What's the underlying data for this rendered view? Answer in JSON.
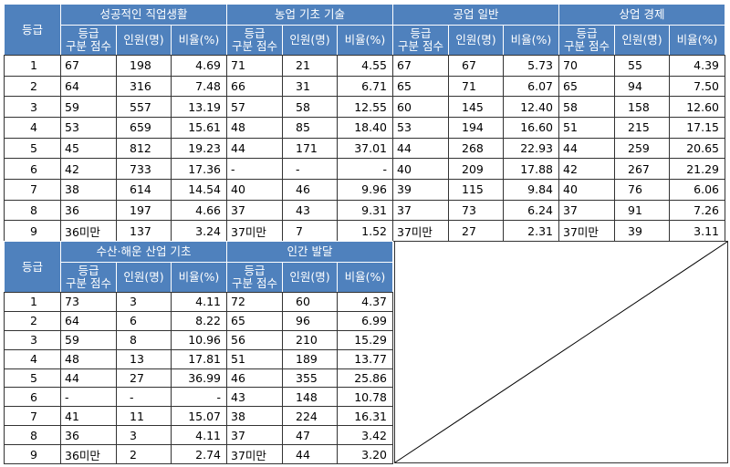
{
  "blocks": [
    {
      "grade_header": "등급",
      "grades": [
        "1",
        "2",
        "3",
        "4",
        "5",
        "6",
        "7",
        "8",
        "9"
      ],
      "subjects": [
        {
          "name": "성공적인 직업생활",
          "columns": [
            [
              "등급",
              "구분 점수"
            ],
            "인원(명)",
            "비율(%)"
          ],
          "rows": [
            [
              "67",
              "198",
              "4.69"
            ],
            [
              "64",
              "316",
              "7.48"
            ],
            [
              "59",
              "557",
              "13.19"
            ],
            [
              "53",
              "659",
              "15.61"
            ],
            [
              "45",
              "812",
              "19.23"
            ],
            [
              "42",
              "733",
              "17.36"
            ],
            [
              "38",
              "614",
              "14.54"
            ],
            [
              "36",
              "197",
              "4.66"
            ],
            [
              "36미만",
              "137",
              "3.24"
            ]
          ]
        },
        {
          "name": "농업 기초 기술",
          "columns": [
            [
              "등급",
              "구분 점수"
            ],
            "인원(명)",
            "비율(%)"
          ],
          "rows": [
            [
              "71",
              "21",
              "4.55"
            ],
            [
              "66",
              "31",
              "6.71"
            ],
            [
              "57",
              "58",
              "12.55"
            ],
            [
              "48",
              "85",
              "18.40"
            ],
            [
              "44",
              "171",
              "37.01"
            ],
            [
              "-",
              "-",
              "-"
            ],
            [
              "40",
              "46",
              "9.96"
            ],
            [
              "37",
              "43",
              "9.31"
            ],
            [
              "37미만",
              "7",
              "1.52"
            ]
          ]
        },
        {
          "name": "공업 일반",
          "columns": [
            [
              "등급",
              "구분 점수"
            ],
            "인원(명)",
            "비율(%)"
          ],
          "rows": [
            [
              "67",
              "67",
              "5.73"
            ],
            [
              "65",
              "71",
              "6.07"
            ],
            [
              "60",
              "145",
              "12.40"
            ],
            [
              "53",
              "194",
              "16.60"
            ],
            [
              "44",
              "268",
              "22.93"
            ],
            [
              "40",
              "209",
              "17.88"
            ],
            [
              "39",
              "115",
              "9.84"
            ],
            [
              "37",
              "73",
              "6.24"
            ],
            [
              "37미만",
              "27",
              "2.31"
            ]
          ]
        },
        {
          "name": "상업 경제",
          "columns": [
            [
              "등급",
              "구분 점수"
            ],
            "인원(명)",
            "비율(%)"
          ],
          "rows": [
            [
              "70",
              "55",
              "4.39"
            ],
            [
              "65",
              "94",
              "7.50"
            ],
            [
              "58",
              "158",
              "12.60"
            ],
            [
              "51",
              "215",
              "17.15"
            ],
            [
              "44",
              "259",
              "20.65"
            ],
            [
              "42",
              "267",
              "21.29"
            ],
            [
              "40",
              "76",
              "6.06"
            ],
            [
              "37",
              "91",
              "7.26"
            ],
            [
              "37미만",
              "39",
              "3.11"
            ]
          ]
        }
      ]
    },
    {
      "grade_header": "등급",
      "grades": [
        "1",
        "2",
        "3",
        "4",
        "5",
        "6",
        "7",
        "8",
        "9"
      ],
      "subjects": [
        {
          "name": "수산·해운 산업 기초",
          "columns": [
            [
              "등급",
              "구분 점수"
            ],
            "인원(명)",
            "비율(%)"
          ],
          "rows": [
            [
              "73",
              "3",
              "4.11"
            ],
            [
              "64",
              "6",
              "8.22"
            ],
            [
              "59",
              "8",
              "10.96"
            ],
            [
              "48",
              "13",
              "17.81"
            ],
            [
              "44",
              "27",
              "36.99"
            ],
            [
              "-",
              "-",
              "-"
            ],
            [
              "41",
              "11",
              "15.07"
            ],
            [
              "36",
              "3",
              "4.11"
            ],
            [
              "36미만",
              "2",
              "2.74"
            ]
          ]
        },
        {
          "name": "인간 발달",
          "columns": [
            [
              "등급",
              "구분 점수"
            ],
            "인원(명)",
            "비율(%)"
          ],
          "rows": [
            [
              "72",
              "60",
              "4.37"
            ],
            [
              "65",
              "96",
              "6.99"
            ],
            [
              "56",
              "210",
              "15.29"
            ],
            [
              "51",
              "189",
              "13.77"
            ],
            [
              "46",
              "355",
              "25.86"
            ],
            [
              "43",
              "148",
              "10.78"
            ],
            [
              "38",
              "224",
              "16.31"
            ],
            [
              "37",
              "47",
              "3.42"
            ],
            [
              "37미만",
              "44",
              "3.20"
            ]
          ]
        }
      ]
    }
  ]
}
